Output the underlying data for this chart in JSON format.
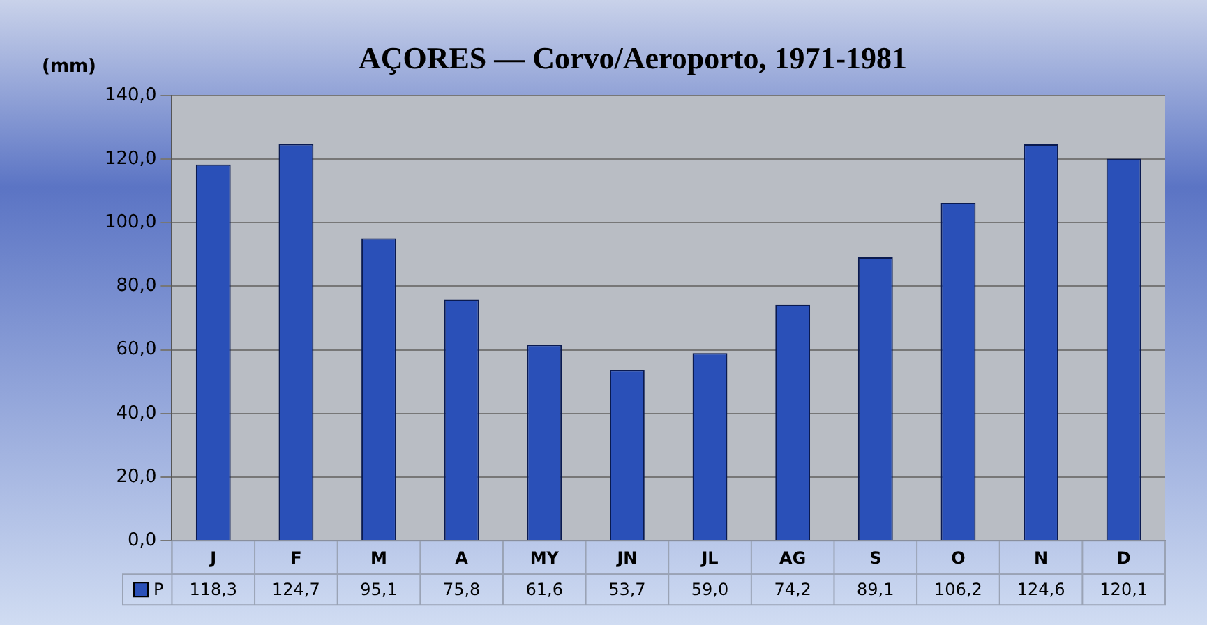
{
  "chart_data": {
    "type": "bar",
    "title": "AÇORES — Corvo/Aeroporto, 1971-1981",
    "ylabel": "(mm)",
    "categories": [
      "J",
      "F",
      "M",
      "A",
      "MY",
      "JN",
      "JL",
      "AG",
      "S",
      "O",
      "N",
      "D"
    ],
    "series": [
      {
        "name": "P",
        "color": "#2a50b8",
        "values": [
          118.3,
          124.7,
          95.1,
          75.8,
          61.6,
          53.7,
          59.0,
          74.2,
          89.1,
          106.2,
          124.6,
          120.1
        ],
        "value_labels": [
          "118,3",
          "124,7",
          "95,1",
          "75,8",
          "61,6",
          "53,7",
          "59,0",
          "74,2",
          "89,1",
          "106,2",
          "124,6",
          "120,1"
        ]
      }
    ],
    "ylim": [
      0,
      140
    ],
    "yticks": [
      {
        "value": 0,
        "label": "0,0"
      },
      {
        "value": 20,
        "label": "20,0"
      },
      {
        "value": 40,
        "label": "40,0"
      },
      {
        "value": 60,
        "label": "60,0"
      },
      {
        "value": 80,
        "label": "80,0"
      },
      {
        "value": 100,
        "label": "100,0"
      },
      {
        "value": 120,
        "label": "120,0"
      },
      {
        "value": 140,
        "label": "140,0"
      }
    ],
    "grid": "y",
    "legend": "bottom"
  }
}
